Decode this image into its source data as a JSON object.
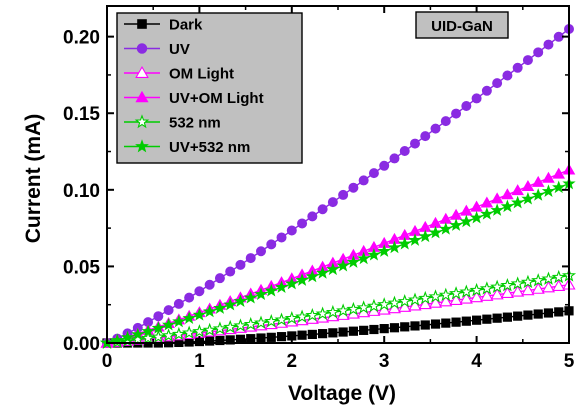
{
  "chart_data": {
    "type": "scatter",
    "xlabel": "Voltage (V)",
    "ylabel": "Current (mA)",
    "xlim": [
      0,
      5
    ],
    "ylim": [
      0,
      0.22
    ],
    "x_ticks": [
      "0",
      "1",
      "2",
      "3",
      "4",
      "5"
    ],
    "y_ticks": [
      "0.00",
      "0.05",
      "0.10",
      "0.15",
      "0.20"
    ],
    "grid": false,
    "legend_position": "top-left",
    "annotation": "UID-GaN",
    "series": [
      {
        "name": "Dark",
        "marker": "square-filled",
        "color": "#000000",
        "y_at_5V": 0.021,
        "power": 1.35,
        "onset": 0.55,
        "points": 46
      },
      {
        "name": "UV",
        "marker": "circle-filled",
        "color": "#8a2be2",
        "y_at_5V": 0.205,
        "power": 1.12,
        "onset": 0.0,
        "points": 46
      },
      {
        "name": "OM Light",
        "marker": "triangle-open",
        "color": "#ff00ff",
        "y_at_5V": 0.038,
        "power": 1.1,
        "onset": 0.0,
        "points": 46
      },
      {
        "name": "UV+OM Light",
        "marker": "triangle-filled",
        "color": "#ff00ff",
        "y_at_5V": 0.113,
        "power": 1.08,
        "onset": 0.0,
        "points": 46
      },
      {
        "name": "532 nm",
        "marker": "star-open",
        "color": "#00cc00",
        "y_at_5V": 0.044,
        "power": 1.1,
        "onset": 0.0,
        "points": 46
      },
      {
        "name": "UV+532 nm",
        "marker": "star-filled",
        "color": "#00cc00",
        "y_at_5V": 0.104,
        "power": 1.08,
        "onset": 0.0,
        "points": 46
      }
    ]
  }
}
